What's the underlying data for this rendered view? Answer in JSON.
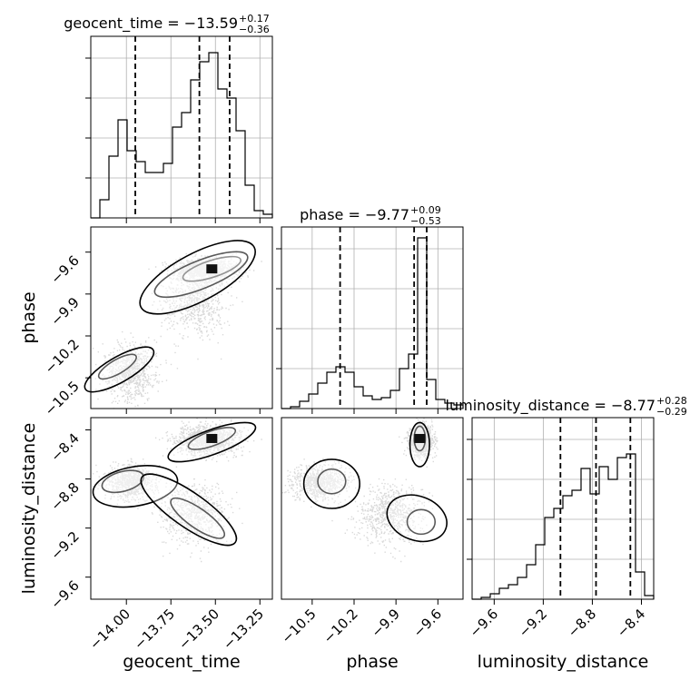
{
  "chart_data": {
    "type": "corner",
    "title": "",
    "parameters": [
      {
        "name": "geocent_time",
        "axis_label": "geocent_time",
        "title_main": "geocent_time = −13.59",
        "title_sup": "+0.17",
        "title_sub": "−0.36",
        "range": [
          -14.2,
          -13.18
        ],
        "ticks": [
          -14.0,
          -13.75,
          -13.5,
          -13.25
        ],
        "tick_labels": [
          "−14.00",
          "−13.75",
          "−13.50",
          "−13.25"
        ],
        "quantiles": [
          -13.95,
          -13.59,
          -13.42
        ],
        "hist_edges": [
          -14.2,
          -14.149,
          -14.098,
          -14.047,
          -13.996,
          -13.945,
          -13.894,
          -13.843,
          -13.792,
          -13.741,
          -13.69,
          -13.639,
          -13.588,
          -13.537,
          -13.486,
          -13.435,
          -13.384,
          -13.333,
          -13.282,
          -13.231,
          -13.18
        ],
        "hist_values": [
          0.0,
          0.1,
          0.34,
          0.54,
          0.37,
          0.31,
          0.25,
          0.25,
          0.3,
          0.5,
          0.58,
          0.76,
          0.86,
          0.91,
          0.71,
          0.66,
          0.48,
          0.18,
          0.04,
          0.02
        ]
      },
      {
        "name": "phase",
        "axis_label": "phase",
        "title_main": "phase = −9.77",
        "title_sup": "+0.09",
        "title_sub": "−0.53",
        "range": [
          -10.72,
          -9.42
        ],
        "ticks": [
          -10.5,
          -10.2,
          -9.9,
          -9.6
        ],
        "tick_labels": [
          "−10.5",
          "−10.2",
          "−9.9",
          "−9.6"
        ],
        "quantiles": [
          -10.3,
          -9.77,
          -9.68
        ],
        "hist_edges": [
          -10.72,
          -10.655,
          -10.59,
          -10.525,
          -10.46,
          -10.395,
          -10.33,
          -10.265,
          -10.2,
          -10.135,
          -10.07,
          -10.005,
          -9.94,
          -9.875,
          -9.81,
          -9.745,
          -9.68,
          -9.615,
          -9.55,
          -9.485,
          -9.42
        ],
        "hist_values": [
          0.0,
          0.01,
          0.04,
          0.08,
          0.14,
          0.2,
          0.23,
          0.2,
          0.12,
          0.07,
          0.05,
          0.06,
          0.1,
          0.22,
          0.3,
          0.94,
          0.16,
          0.05,
          0.03,
          0.02
        ]
      },
      {
        "name": "luminosity_distance",
        "axis_label": "luminosity_distance",
        "title_main": "luminosity_distance = −8.77",
        "title_sup": "+0.28",
        "title_sub": "−0.29",
        "range": [
          -9.78,
          -8.3
        ],
        "ticks": [
          -9.6,
          -9.2,
          -8.8,
          -8.4
        ],
        "tick_labels": [
          "−9.6",
          "−9.2",
          "−8.8",
          "−8.4"
        ],
        "quantiles": [
          -9.06,
          -8.77,
          -8.49
        ],
        "hist_edges": [
          -9.78,
          -9.706,
          -9.632,
          -9.558,
          -9.484,
          -9.41,
          -9.336,
          -9.262,
          -9.188,
          -9.114,
          -9.04,
          -8.966,
          -8.892,
          -8.818,
          -8.744,
          -8.67,
          -8.596,
          -8.522,
          -8.448,
          -8.374,
          -8.3
        ],
        "hist_values": [
          0.0,
          0.01,
          0.03,
          0.06,
          0.08,
          0.12,
          0.19,
          0.3,
          0.45,
          0.5,
          0.57,
          0.6,
          0.72,
          0.58,
          0.73,
          0.66,
          0.78,
          0.8,
          0.15,
          0.02
        ]
      }
    ]
  }
}
